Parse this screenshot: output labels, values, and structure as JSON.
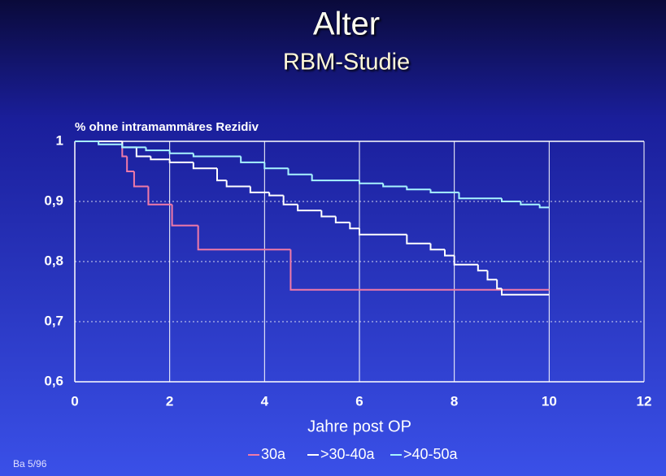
{
  "chart_data": {
    "type": "step",
    "title": "Alter",
    "subtitle": "RBM-Studie",
    "ylabel": "% ohne intramammäres Rezidiv",
    "xlabel": "Jahre post OP",
    "footnote": "Ba 5/96",
    "xlim": [
      0,
      12
    ],
    "xticks": [
      0,
      2,
      4,
      6,
      8,
      10,
      12
    ],
    "ylim": [
      0.6,
      1
    ],
    "yticks": [
      1,
      {
        "value": 0.9,
        "label": "0,9"
      },
      {
        "value": 0.8,
        "label": "0,8"
      },
      {
        "value": 0.7,
        "label": "0,7"
      },
      {
        "value": 0.6,
        "label": "0,6"
      }
    ],
    "grid": true,
    "legend": "bottom",
    "series": [
      {
        "name": "30a",
        "color": "#f07aa8",
        "x": [
          0,
          1.0,
          1.1,
          1.25,
          1.55,
          2.05,
          2.6,
          4.55,
          10
        ],
        "values": [
          1,
          0.975,
          0.95,
          0.925,
          0.895,
          0.86,
          0.82,
          0.753,
          0.753
        ]
      },
      {
        "name": ">30-40a",
        "color": "#ffffff",
        "x": [
          0,
          1.0,
          1.3,
          1.6,
          2.0,
          2.5,
          3.0,
          3.2,
          3.7,
          4.1,
          4.4,
          4.7,
          5.2,
          5.5,
          5.8,
          6.0,
          7.0,
          7.5,
          7.8,
          8.0,
          8.5,
          8.7,
          8.9,
          9.0,
          10
        ],
        "values": [
          1,
          0.99,
          0.975,
          0.97,
          0.965,
          0.955,
          0.935,
          0.925,
          0.915,
          0.91,
          0.895,
          0.885,
          0.875,
          0.865,
          0.855,
          0.845,
          0.83,
          0.82,
          0.81,
          0.795,
          0.785,
          0.77,
          0.755,
          0.745,
          0.745
        ]
      },
      {
        "name": ">40-50a",
        "color": "#a8f4ff",
        "x": [
          0,
          0.5,
          1.0,
          1.5,
          2.0,
          2.5,
          3.5,
          4.0,
          4.5,
          5.0,
          6.0,
          6.5,
          7.0,
          7.5,
          8.1,
          9.0,
          9.4,
          9.8,
          10
        ],
        "values": [
          1,
          0.995,
          0.99,
          0.985,
          0.98,
          0.975,
          0.965,
          0.955,
          0.945,
          0.935,
          0.93,
          0.925,
          0.92,
          0.915,
          0.905,
          0.9,
          0.895,
          0.89,
          0.89
        ]
      }
    ]
  }
}
